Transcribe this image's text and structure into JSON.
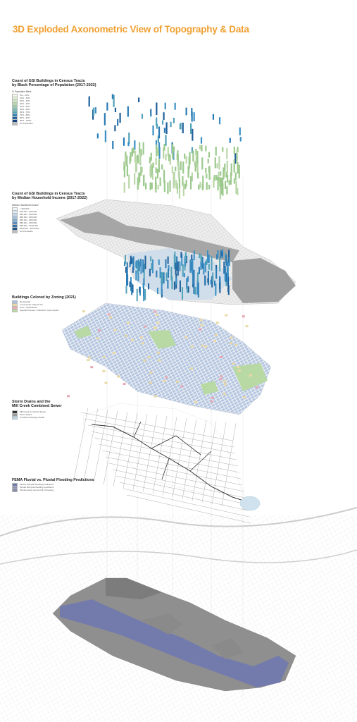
{
  "title": "3D Exploded Axonometric View of Topography & Data",
  "sections": [
    {
      "id": "black",
      "title_lines": [
        "Count of GSI Buildings in Census Tracts",
        "by Black Percentage of Population (2017-2022)"
      ],
      "legend_title": "% Population Black",
      "legend": [
        {
          "label": "0% - 10%",
          "color": "#f4f8ec"
        },
        {
          "label": "10% - 20%",
          "color": "#e2f0d4"
        },
        {
          "label": "20% - 30%",
          "color": "#cde6bd"
        },
        {
          "label": "30% - 40%",
          "color": "#b2d9ac"
        },
        {
          "label": "40% - 50%",
          "color": "#95cba8"
        },
        {
          "label": "50% - 60%",
          "color": "#72b9b0"
        },
        {
          "label": "60% - 70%",
          "color": "#52a2b9"
        },
        {
          "label": "70% - 80%",
          "color": "#3684b3"
        },
        {
          "label": "80% - 90%",
          "color": "#23659f"
        },
        {
          "label": "90% - 100%",
          "color": "#164585"
        },
        {
          "label": "No Population",
          "color": "#bdbdbd"
        }
      ]
    },
    {
      "id": "income",
      "title_lines": [
        "Count of GSI Buildings in Census Tracts",
        "by Median Household Income (2017-2022)"
      ],
      "legend_title": "Median Household Income",
      "legend": [
        {
          "label": "< $20,000",
          "color": "#f2f6fa"
        },
        {
          "label": "$20,001 - $35,000",
          "color": "#dde8f2"
        },
        {
          "label": "$35,001 - $50,000",
          "color": "#c3d7ea"
        },
        {
          "label": "$50,001 - $65,000",
          "color": "#a3c2de"
        },
        {
          "label": "$65,001 - $80,000",
          "color": "#7faacd"
        },
        {
          "label": "$80,001 - $95,000",
          "color": "#5a8fbd"
        },
        {
          "label": "$95,001 - $110,000",
          "color": "#3a72a6"
        },
        {
          "label": "$110,001 - $125,000",
          "color": "#22568e"
        },
        {
          "label": "No Population",
          "color": "#bdbdbd"
        }
      ]
    },
    {
      "id": "zoning",
      "title_lines": [
        "Buildings Colored by Zoning (2021)"
      ],
      "legend_title": "",
      "legend": [
        {
          "label": "Residential",
          "color": "#a9bfe0"
        },
        {
          "label": "Commercial / Mixed-Use",
          "color": "#e9d9a6"
        },
        {
          "label": "Civic / Institutional",
          "color": "#e8a9b4"
        },
        {
          "label": "Special Purpose / Industrial / Open Space",
          "color": "#b9d9a4"
        }
      ]
    },
    {
      "id": "sewer",
      "title_lines": [
        "Storm Drains and the",
        "Mill Creek Combined Sewer"
      ],
      "legend_title": "",
      "legend": [
        {
          "label": "Mill Creek Combined Sewer",
          "color": "#333333"
        },
        {
          "label": "Storm Drains",
          "color": "#9a9a9a"
        },
        {
          "label": "Combined Sewage Outfall",
          "color": "#bcd6e6"
        }
      ]
    },
    {
      "id": "flood",
      "title_lines": [
        "FEMA Fluvial vs. Pluvial Flooding Predictions"
      ],
      "legend_title": "",
      "legend": [
        {
          "label": "Fluvial 100-year flooding predictions",
          "color": "#6c7aa6"
        },
        {
          "label": "Pluvial 100-year flooding predictions",
          "color": "#8c93ad"
        },
        {
          "label": "Pluvial areas most at risk of flooding",
          "color": "#7f8aa8"
        }
      ]
    }
  ],
  "colors": {
    "accent": "#f0a032",
    "green_bars": "#9cc98d",
    "blue_bars": "#2b7bb5",
    "gray_land": "#a8a8a8",
    "flood_blue": "#7079b0"
  }
}
